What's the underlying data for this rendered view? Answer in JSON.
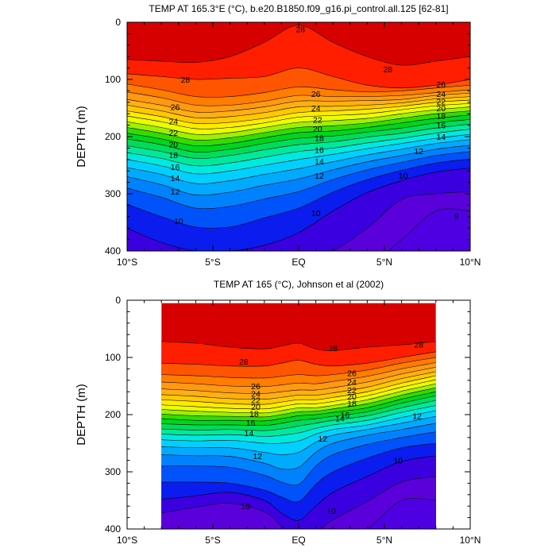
{
  "chart_data": [
    {
      "type": "contour",
      "title": "TEMP AT 165.3°E (°C), b.e20.B1850.f09_g16.pi_control.all.125 [62-81]",
      "ylabel": "DEPTH (m)",
      "xlabel": "",
      "xlim": [
        -10,
        10
      ],
      "ylim": [
        0,
        400
      ],
      "y_inverted": true,
      "xtick_values": [
        -10,
        -5,
        0,
        5,
        10
      ],
      "xtick_labels": [
        "10°S",
        "5°S",
        "EQ",
        "5°N",
        "10°N"
      ],
      "ytick_values": [
        0,
        100,
        200,
        300,
        400
      ],
      "ytick_labels": [
        "0",
        "100",
        "200",
        "300",
        "400"
      ],
      "data_x_range": [
        -10,
        10
      ],
      "contour_interval": 1,
      "isotherm_depths": {
        "x": [
          -10,
          -8,
          -6,
          -4,
          -2,
          0,
          2,
          4,
          6,
          8,
          10
        ],
        "levels": [
          {
            "t": 29,
            "d": [
              0,
              0,
              0,
              0,
              0,
              0,
              0,
              0,
              0,
              0,
              0
            ]
          },
          {
            "t": 28,
            "d": [
              65,
              68,
              70,
              60,
              35,
              5,
              35,
              60,
              75,
              68,
              60
            ]
          },
          {
            "t": 27,
            "d": [
              90,
              95,
              100,
              98,
              95,
              80,
              95,
              110,
              115,
              110,
              100
            ]
          },
          {
            "t": 26,
            "d": [
              108,
              118,
              130,
              130,
              123,
              113,
              118,
              122,
              120,
              115,
              110
            ]
          },
          {
            "t": 25,
            "d": [
              122,
              132,
              145,
              145,
              138,
              128,
              130,
              130,
              128,
              123,
              118
            ]
          },
          {
            "t": 24,
            "d": [
              135,
              145,
              157,
              155,
              148,
              138,
              138,
              137,
              135,
              128,
              124
            ]
          },
          {
            "t": 23,
            "d": [
              145,
              155,
              167,
              165,
              158,
              148,
              147,
              145,
              141,
              134,
              130
            ]
          },
          {
            "t": 22,
            "d": [
              155,
              165,
              177,
              175,
              168,
              158,
              155,
              152,
              147,
              140,
              136
            ]
          },
          {
            "t": 21,
            "d": [
              164,
              174,
              186,
              184,
              176,
              166,
              163,
              160,
              153,
              146,
              142
            ]
          },
          {
            "t": 20,
            "d": [
              174,
              184,
              196,
              193,
              184,
              175,
              172,
              168,
              160,
              153,
              148
            ]
          },
          {
            "t": 19,
            "d": [
              184,
              194,
              206,
              202,
              193,
              184,
              181,
              176,
              168,
              160,
              155
            ]
          },
          {
            "t": 18,
            "d": [
              194,
              204,
              216,
              212,
              202,
              193,
              190,
              184,
              176,
              168,
              162
            ]
          },
          {
            "t": 17,
            "d": [
              204,
              214,
              227,
              222,
              212,
              203,
              199,
              192,
              185,
              176,
              170
            ]
          },
          {
            "t": 16,
            "d": [
              216,
              226,
              238,
              233,
              223,
              214,
              209,
              201,
              194,
              185,
              178
            ]
          },
          {
            "t": 15,
            "d": [
              228,
              238,
              251,
              246,
              236,
              226,
              220,
              211,
              203,
              194,
              187
            ]
          },
          {
            "t": 14,
            "d": [
              240,
              251,
              265,
              260,
              250,
              240,
              231,
              221,
              212,
              203,
              196
            ]
          },
          {
            "t": 13,
            "d": [
              254,
              266,
              282,
              277,
              266,
              256,
              244,
              232,
              222,
              212,
              205
            ]
          },
          {
            "t": 12,
            "d": [
              270,
              284,
              302,
              297,
              285,
              274,
              258,
              244,
              233,
              222,
              215
            ]
          },
          {
            "t": 11,
            "d": [
              290,
              306,
              325,
              322,
              309,
              296,
              275,
              258,
              245,
              233,
              226
            ]
          },
          {
            "t": 10,
            "d": [
              318,
              340,
              358,
              358,
              342,
              325,
              297,
              275,
              259,
              246,
              239
            ]
          },
          {
            "t": 9,
            "d": [
              360,
              385,
              400,
              400,
              390,
              368,
              330,
              298,
              277,
              262,
              255
            ]
          },
          {
            "t": 8,
            "d": [
              420,
              430,
              440,
              440,
              435,
              420,
              400,
              360,
              310,
              300,
              296
            ]
          },
          {
            "t": 7,
            "d": [
              470,
              470,
              470,
              470,
              470,
              470,
              470,
              430,
              380,
              330,
              330
            ]
          }
        ]
      },
      "contour_labels": [
        {
          "text": "28",
          "x": 0.1,
          "y": 12
        },
        {
          "text": "28",
          "x": -6.6,
          "y": 100
        },
        {
          "text": "28",
          "x": 5.2,
          "y": 82
        },
        {
          "text": "26",
          "x": -7.2,
          "y": 148
        },
        {
          "text": "26",
          "x": 1.0,
          "y": 125
        },
        {
          "text": "26",
          "x": 8.3,
          "y": 108
        },
        {
          "text": "24",
          "x": -7.3,
          "y": 173
        },
        {
          "text": "24",
          "x": 1.0,
          "y": 150
        },
        {
          "text": "24",
          "x": 8.3,
          "y": 125
        },
        {
          "text": "22",
          "x": -7.3,
          "y": 193
        },
        {
          "text": "22",
          "x": 1.1,
          "y": 170
        },
        {
          "text": "22",
          "x": 8.3,
          "y": 138
        },
        {
          "text": "20",
          "x": -7.3,
          "y": 213
        },
        {
          "text": "20",
          "x": 1.1,
          "y": 186
        },
        {
          "text": "20",
          "x": 8.3,
          "y": 150
        },
        {
          "text": "18",
          "x": -7.3,
          "y": 232
        },
        {
          "text": "18",
          "x": 1.2,
          "y": 202
        },
        {
          "text": "18",
          "x": 8.3,
          "y": 163
        },
        {
          "text": "16",
          "x": -7.2,
          "y": 253
        },
        {
          "text": "16",
          "x": 1.2,
          "y": 223
        },
        {
          "text": "16",
          "x": 8.3,
          "y": 180
        },
        {
          "text": "14",
          "x": -7.2,
          "y": 272
        },
        {
          "text": "14",
          "x": 1.2,
          "y": 243
        },
        {
          "text": "14",
          "x": 8.3,
          "y": 200
        },
        {
          "text": "12",
          "x": -7.2,
          "y": 296
        },
        {
          "text": "12",
          "x": 1.2,
          "y": 268
        },
        {
          "text": "12",
          "x": 7.0,
          "y": 225
        },
        {
          "text": "10",
          "x": -7.0,
          "y": 347
        },
        {
          "text": "10",
          "x": 1.0,
          "y": 333
        },
        {
          "text": "10",
          "x": 6.1,
          "y": 268
        },
        {
          "text": "9",
          "x": 9.2,
          "y": 338
        }
      ]
    },
    {
      "type": "contour",
      "title": "TEMP AT 165 (°C), Johnson et al (2002)",
      "ylabel": "DEPTH (m)",
      "xlabel": "",
      "xlim": [
        -10,
        10
      ],
      "ylim": [
        0,
        400
      ],
      "y_inverted": true,
      "xtick_values": [
        -10,
        -5,
        0,
        5,
        10
      ],
      "xtick_labels": [
        "10°S",
        "5°S",
        "EQ",
        "5°N",
        "10°N"
      ],
      "ytick_values": [
        0,
        100,
        200,
        300,
        400
      ],
      "ytick_labels": [
        "0",
        "100",
        "200",
        "300",
        "400"
      ],
      "data_x_range": [
        -8,
        8
      ],
      "data_y_range": [
        5,
        400
      ],
      "contour_interval": 1,
      "isotherm_depths": {
        "x": [
          -8,
          -6,
          -4,
          -2,
          -1,
          0,
          1,
          2,
          4,
          6,
          8
        ],
        "levels": [
          {
            "t": 29,
            "d": [
              0,
              0,
              0,
              0,
              0,
              0,
              0,
              0,
              0,
              0,
              0
            ]
          },
          {
            "t": 28,
            "d": [
              72,
              75,
              82,
              85,
              80,
              75,
              85,
              88,
              82,
              78,
              72
            ]
          },
          {
            "t": 27,
            "d": [
              110,
              112,
              115,
              115,
              110,
              105,
              112,
              115,
              110,
              100,
              90
            ]
          },
          {
            "t": 26,
            "d": [
              130,
              132,
              135,
              136,
              133,
              130,
              132,
              130,
              122,
              110,
              100
            ]
          },
          {
            "t": 25,
            "d": [
              143,
              146,
              150,
              151,
              148,
              145,
              146,
              142,
              133,
              120,
              109
            ]
          },
          {
            "t": 24,
            "d": [
              155,
              158,
              162,
              163,
              160,
              157,
              157,
              153,
              143,
              129,
              117
            ]
          },
          {
            "t": 23,
            "d": [
              165,
              168,
              172,
              173,
              170,
              166,
              166,
              162,
              152,
              137,
              125
            ]
          },
          {
            "t": 22,
            "d": [
              174,
              177,
              181,
              182,
              178,
              174,
              174,
              170,
              160,
              145,
              132
            ]
          },
          {
            "t": 21,
            "d": [
              183,
              186,
              189,
              190,
              186,
              181,
              181,
              177,
              167,
              152,
              139
            ]
          },
          {
            "t": 20,
            "d": [
              191,
              194,
              196,
              197,
              193,
              188,
              188,
              184,
              174,
              159,
              146
            ]
          },
          {
            "t": 19,
            "d": [
              199,
              202,
              203,
              204,
              200,
              195,
              194,
              190,
              181,
              166,
              153
            ]
          },
          {
            "t": 18,
            "d": [
              207,
              210,
              210,
              211,
              207,
              202,
              200,
              196,
              188,
              173,
              160
            ]
          },
          {
            "t": 17,
            "d": [
              216,
              218,
              218,
              219,
              215,
              210,
              207,
              203,
              195,
              180,
              167
            ]
          },
          {
            "t": 16,
            "d": [
              225,
              227,
              226,
              228,
              225,
              220,
              215,
              210,
              202,
              188,
              175
            ]
          },
          {
            "t": 15,
            "d": [
              234,
              236,
              235,
              238,
              236,
              232,
              224,
              218,
              210,
              196,
              184
            ]
          },
          {
            "t": 14,
            "d": [
              244,
              246,
              245,
              250,
              250,
              246,
              234,
              226,
              218,
              205,
              193
            ]
          },
          {
            "t": 13,
            "d": [
              256,
              258,
              258,
              266,
              270,
              266,
              248,
              236,
              226,
              215,
              203
            ]
          },
          {
            "t": 12,
            "d": [
              270,
              272,
              273,
              285,
              295,
              292,
              266,
              250,
              236,
              226,
              215
            ]
          },
          {
            "t": 11,
            "d": [
              290,
              290,
              292,
              306,
              318,
              322,
              290,
              270,
              252,
              240,
              230
            ]
          },
          {
            "t": 10,
            "d": [
              318,
              318,
              320,
              332,
              344,
              352,
              322,
              300,
              276,
              258,
              250
            ]
          },
          {
            "t": 9,
            "d": [
              348,
              342,
              336,
              350,
              372,
              385,
              360,
              336,
              308,
              282,
              272
            ]
          },
          {
            "t": 8,
            "d": [
              372,
              362,
              355,
              370,
              395,
              415,
              405,
              384,
              352,
              318,
              308
            ]
          },
          {
            "t": 7,
            "d": [
              410,
              405,
              400,
              410,
              430,
              440,
              440,
              430,
              400,
              350,
              350
            ]
          }
        ]
      },
      "contour_labels": [
        {
          "text": "28",
          "x": 2.0,
          "y": 83
        },
        {
          "text": "28",
          "x": -3.2,
          "y": 107
        },
        {
          "text": "28",
          "x": 7.0,
          "y": 77
        },
        {
          "text": "26",
          "x": -2.5,
          "y": 150
        },
        {
          "text": "26",
          "x": 3.1,
          "y": 127
        },
        {
          "text": "24",
          "x": -2.5,
          "y": 163
        },
        {
          "text": "24",
          "x": 3.1,
          "y": 143
        },
        {
          "text": "22",
          "x": -2.5,
          "y": 174
        },
        {
          "text": "22",
          "x": 3.1,
          "y": 157
        },
        {
          "text": "20",
          "x": -2.5,
          "y": 186
        },
        {
          "text": "20",
          "x": 3.1,
          "y": 168
        },
        {
          "text": "18",
          "x": -2.6,
          "y": 198
        },
        {
          "text": "18",
          "x": 3.1,
          "y": 180
        },
        {
          "text": "16",
          "x": -2.8,
          "y": 214
        },
        {
          "text": "16",
          "x": 2.7,
          "y": 200
        },
        {
          "text": "14",
          "x": -2.9,
          "y": 232
        },
        {
          "text": "14",
          "x": 2.4,
          "y": 206
        },
        {
          "text": "12",
          "x": -2.4,
          "y": 272
        },
        {
          "text": "12",
          "x": 1.4,
          "y": 242
        },
        {
          "text": "12",
          "x": 6.9,
          "y": 202
        },
        {
          "text": "10",
          "x": -3.1,
          "y": 360
        },
        {
          "text": "10",
          "x": 1.9,
          "y": 368
        },
        {
          "text": "10",
          "x": 5.8,
          "y": 280
        }
      ]
    }
  ]
}
